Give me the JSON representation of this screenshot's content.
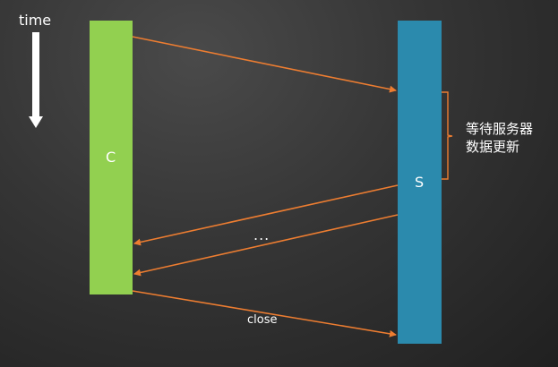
{
  "time_axis": {
    "label": "time",
    "arrow_icon": "down-arrow-icon"
  },
  "client": {
    "label": "C",
    "color": "#92d050"
  },
  "server": {
    "label": "S",
    "color": "#2b8aad"
  },
  "annotation": {
    "line1": "等待服务器",
    "line2": "数据更新"
  },
  "messages": {
    "ellipsis": "...",
    "close_label": "close"
  },
  "arrow_color": "#ed7d31"
}
